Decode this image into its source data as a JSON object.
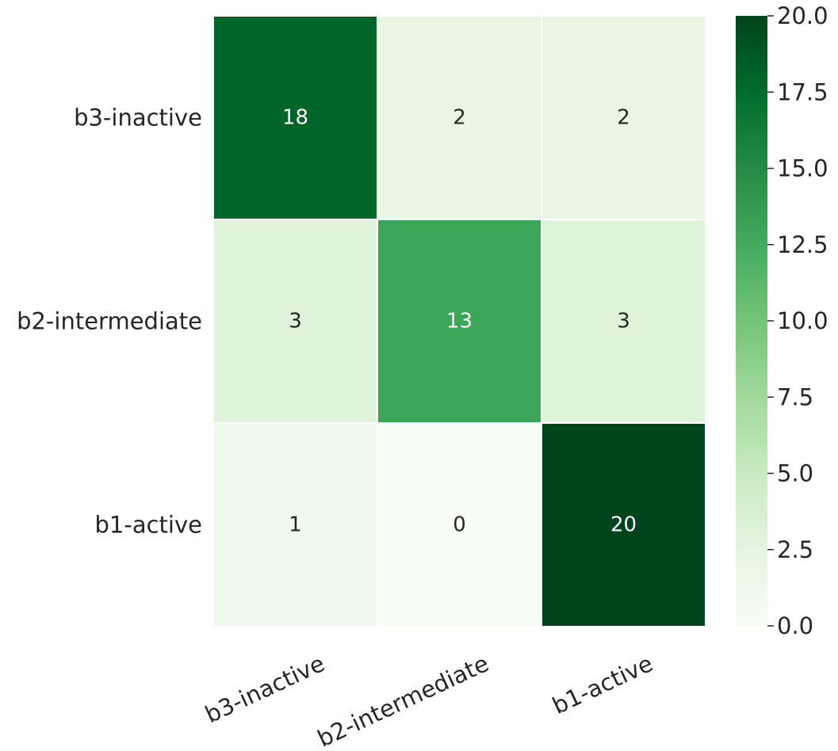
{
  "chart_data": {
    "type": "heatmap",
    "title": "",
    "xlabel": "",
    "ylabel": "",
    "x_categories": [
      "b3-inactive",
      "b2-intermediate",
      "b1-active"
    ],
    "y_categories": [
      "b3-inactive",
      "b2-intermediate",
      "b1-active"
    ],
    "values": [
      [
        18,
        2,
        2
      ],
      [
        3,
        13,
        3
      ],
      [
        1,
        0,
        20
      ]
    ],
    "colorbar": {
      "min": 0,
      "max": 20,
      "ticks": [
        0,
        2.5,
        5,
        7.5,
        10,
        12.5,
        15,
        17.5,
        20
      ],
      "tick_labels": [
        "0.0",
        "2.5",
        "5.0",
        "7.5",
        "10.0",
        "12.5",
        "15.0",
        "17.5",
        "20.0"
      ]
    },
    "colormap": {
      "name": "Greens",
      "stops": [
        "#f7fcf5",
        "#e5f5e0",
        "#c7e9c0",
        "#a1d99b",
        "#74c476",
        "#41ab5d",
        "#238b45",
        "#006d2c",
        "#00441b"
      ]
    },
    "colors": {
      "dark_text": "#262626",
      "light_text": "#ffffff",
      "cell_border": "#ffffff"
    }
  }
}
